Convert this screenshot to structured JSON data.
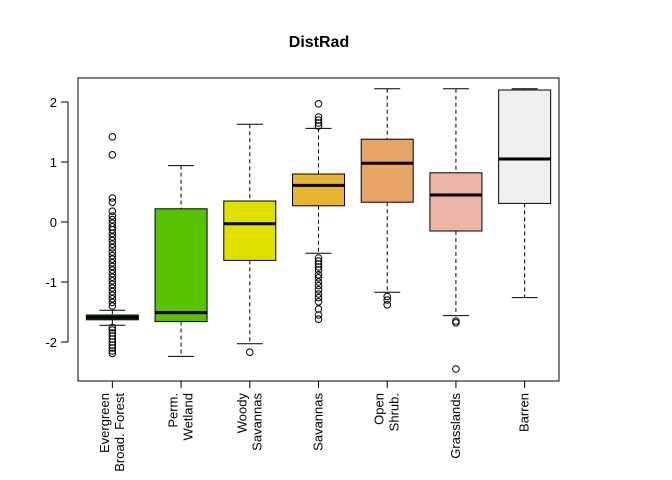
{
  "chart_data": {
    "type": "boxplot",
    "title": "DistRad",
    "xlabel": "",
    "ylabel": "",
    "ylim": [
      -2.65,
      2.4
    ],
    "yticks": [
      -2,
      -1,
      0,
      1,
      2
    ],
    "ytick_labels": [
      "-2",
      "-1",
      "0",
      "1",
      "2"
    ],
    "grid": false,
    "categories": [
      {
        "label_lines": [
          "Evergreen",
          "Broad. Forest"
        ],
        "color": "#1a7a00",
        "whisker_low": -1.72,
        "q1": -1.63,
        "median": -1.59,
        "q3": -1.55,
        "whisker_high": -1.47,
        "outliers": [
          1.42,
          1.12,
          0.4,
          0.33,
          0.18,
          0.1,
          0.04,
          -0.02,
          -0.08,
          -0.13,
          -0.19,
          -0.25,
          -0.31,
          -0.37,
          -0.43,
          -0.5,
          -0.56,
          -0.62,
          -0.68,
          -0.74,
          -0.8,
          -0.86,
          -0.92,
          -0.98,
          -1.04,
          -1.1,
          -1.16,
          -1.22,
          -1.28,
          -1.34,
          -1.4,
          -1.76,
          -1.8,
          -1.85,
          -1.9,
          -1.95,
          -2.0,
          -2.05,
          -2.1,
          -2.15,
          -2.19
        ]
      },
      {
        "label_lines": [
          "Perm.",
          "Wetland"
        ],
        "color": "#56c200",
        "whisker_low": -2.24,
        "q1": -1.66,
        "median": -1.51,
        "q3": 0.22,
        "whisker_high": 0.94,
        "outliers": []
      },
      {
        "label_lines": [
          "Woody",
          "Savannas"
        ],
        "color": "#e0e000",
        "whisker_low": -2.03,
        "q1": -0.64,
        "median": -0.03,
        "q3": 0.35,
        "whisker_high": 1.63,
        "outliers": [
          -2.17
        ]
      },
      {
        "label_lines": [
          "Savannas"
        ],
        "color": "#e6b530",
        "whisker_low": -0.52,
        "q1": 0.27,
        "median": 0.61,
        "q3": 0.8,
        "whisker_high": 1.56,
        "outliers": [
          1.97,
          1.75,
          1.7,
          1.65,
          1.6,
          -0.6,
          -0.65,
          -0.7,
          -0.75,
          -0.8,
          -0.88,
          -0.93,
          -1.0,
          -1.06,
          -1.13,
          -1.2,
          -1.26,
          -1.33,
          -1.45,
          -1.55,
          -1.62
        ]
      },
      {
        "label_lines": [
          "Open",
          "Shrub."
        ],
        "color": "#e8a466",
        "whisker_low": -1.17,
        "q1": 0.33,
        "median": 0.98,
        "q3": 1.38,
        "whisker_high": 2.22,
        "outliers": [
          -1.24,
          -1.3,
          -1.38
        ]
      },
      {
        "label_lines": [
          "Grasslands"
        ],
        "color": "#ecb5a8",
        "whisker_low": -1.56,
        "q1": -0.15,
        "median": 0.45,
        "q3": 0.82,
        "whisker_high": 2.22,
        "outliers": [
          -1.65,
          -1.68,
          -2.45
        ]
      },
      {
        "label_lines": [
          "Barren"
        ],
        "color": "#efefef",
        "whisker_low": -1.26,
        "q1": 0.31,
        "median": 1.05,
        "q3": 2.2,
        "whisker_high": 2.22,
        "outliers": []
      }
    ]
  }
}
